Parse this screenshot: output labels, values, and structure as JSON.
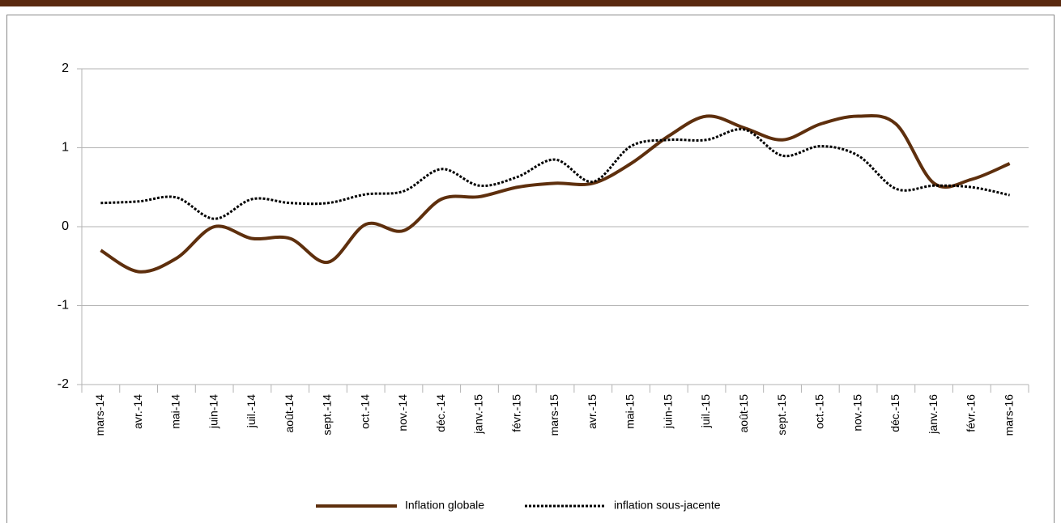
{
  "chart_data": {
    "type": "line",
    "categories": [
      "mars-14",
      "avr.-14",
      "mai-14",
      "juin-14",
      "juil.-14",
      "août-14",
      "sept.-14",
      "oct.-14",
      "nov.-14",
      "déc.-14",
      "janv.-15",
      "févr.-15",
      "mars-15",
      "avr.-15",
      "mai-15",
      "juin-15",
      "juil.-15",
      "août-15",
      "sept.-15",
      "oct.-15",
      "nov.-15",
      "déc.-15",
      "janv.-16",
      "févr.-16",
      "mars-16"
    ],
    "series": [
      {
        "name": "Inflation globale",
        "color": "#5e2f0d",
        "values": [
          -0.3,
          -0.57,
          -0.4,
          0.0,
          -0.15,
          -0.15,
          -0.45,
          0.03,
          -0.05,
          0.35,
          0.38,
          0.5,
          0.55,
          0.55,
          0.8,
          1.15,
          1.4,
          1.25,
          1.1,
          1.3,
          1.4,
          1.3,
          0.55,
          0.6,
          0.8
        ]
      },
      {
        "name": "inflation sous-jacente",
        "color": "#000000",
        "values": [
          0.3,
          0.32,
          0.37,
          0.1,
          0.35,
          0.3,
          0.3,
          0.41,
          0.45,
          0.73,
          0.52,
          0.63,
          0.85,
          0.57,
          1.02,
          1.1,
          1.1,
          1.23,
          0.9,
          1.02,
          0.9,
          0.48,
          0.52,
          0.5,
          0.4
        ]
      }
    ],
    "ylim": [
      -2,
      2
    ],
    "yticks": [
      -2,
      -1,
      0,
      1,
      2
    ],
    "grid": true,
    "legend": "bottom"
  }
}
